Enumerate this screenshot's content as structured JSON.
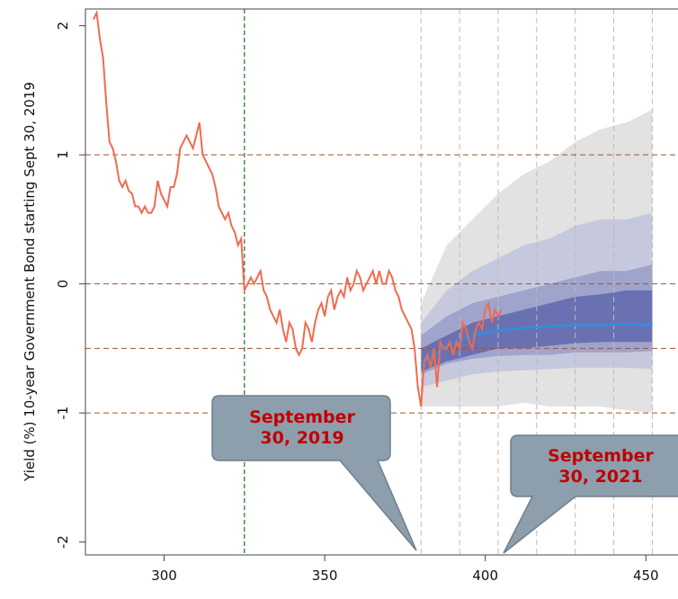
{
  "chart_data": {
    "type": "fan",
    "y_label": "Yield (%) 10-year Government Bond starting Sept 30, 2019",
    "xlim": [
      275.5,
      460
    ],
    "ylim": [
      -2.1,
      2.13
    ],
    "xticks": [
      300,
      350,
      400,
      450
    ],
    "yticks": [
      -2,
      -1,
      0,
      1,
      2
    ],
    "hlines": [
      1,
      0,
      -0.5,
      -1
    ],
    "hline_color": "#a0522d",
    "vlines": [
      380,
      392,
      404,
      416,
      428,
      440,
      452
    ],
    "vline_color": "#bbbbbb",
    "event_line": 325,
    "event_color": "#2e7d32",
    "series": [
      {
        "color": "#f26a4f",
        "x": [
          278,
          279,
          280,
          281,
          282,
          283,
          284,
          285,
          286,
          287,
          288,
          289,
          290,
          291,
          292,
          293,
          294,
          295,
          296,
          297,
          298,
          299,
          300,
          301,
          302,
          303,
          304,
          305,
          306,
          307,
          308,
          309,
          310,
          311,
          312,
          313,
          314,
          315,
          316,
          317,
          318,
          319,
          320,
          321,
          322,
          323,
          324,
          325,
          326,
          327,
          328,
          329,
          330,
          331,
          332,
          333,
          334,
          335,
          336,
          337,
          338,
          339,
          340,
          341,
          342,
          343,
          344,
          345,
          346,
          347,
          348,
          349,
          350,
          351,
          352,
          353,
          354,
          355,
          356,
          357,
          358,
          359,
          360,
          361,
          362,
          363,
          364,
          365,
          366,
          367,
          368,
          369,
          370,
          371,
          372,
          373,
          374,
          375,
          376,
          377,
          378,
          379,
          380,
          381,
          382,
          383,
          384,
          385,
          386,
          387,
          388,
          389,
          390,
          391,
          392,
          393,
          394,
          395,
          396,
          397,
          398,
          399,
          400,
          401,
          402,
          403,
          404,
          405
        ],
        "values": [
          2.05,
          2.1,
          1.9,
          1.75,
          1.4,
          1.1,
          1.05,
          0.95,
          0.8,
          0.75,
          0.8,
          0.72,
          0.7,
          0.6,
          0.6,
          0.55,
          0.6,
          0.55,
          0.55,
          0.6,
          0.8,
          0.7,
          0.65,
          0.6,
          0.75,
          0.75,
          0.85,
          1.05,
          1.1,
          1.15,
          1.1,
          1.05,
          1.15,
          1.25,
          1.0,
          0.95,
          0.9,
          0.85,
          0.75,
          0.6,
          0.55,
          0.5,
          0.55,
          0.45,
          0.4,
          0.3,
          0.35,
          -0.05,
          0.0,
          0.05,
          0.0,
          0.05,
          0.1,
          -0.05,
          -0.1,
          -0.2,
          -0.25,
          -0.3,
          -0.2,
          -0.35,
          -0.45,
          -0.3,
          -0.35,
          -0.5,
          -0.55,
          -0.5,
          -0.3,
          -0.35,
          -0.45,
          -0.3,
          -0.2,
          -0.15,
          -0.25,
          -0.1,
          -0.05,
          -0.2,
          -0.1,
          -0.05,
          -0.1,
          0.05,
          -0.05,
          0.0,
          0.1,
          0.05,
          -0.05,
          0.0,
          0.05,
          0.1,
          0.0,
          0.1,
          0.0,
          0.0,
          0.1,
          0.05,
          -0.05,
          -0.1,
          -0.2,
          -0.25,
          -0.3,
          -0.35,
          -0.5,
          -0.8,
          -0.95,
          -0.6,
          -0.55,
          -0.65,
          -0.5,
          -0.8,
          -0.45,
          -0.5,
          -0.5,
          -0.45,
          -0.55,
          -0.45,
          -0.5,
          -0.3,
          -0.35,
          -0.45,
          -0.5,
          -0.35,
          -0.3,
          -0.35,
          -0.2,
          -0.15,
          -0.3,
          -0.2,
          -0.25,
          -0.2
        ]
      }
    ],
    "forecast_x": [
      380,
      388,
      396,
      404,
      412,
      420,
      428,
      436,
      444,
      452
    ],
    "bands": [
      {
        "color": "#e2e2e2",
        "upper": [
          -0.15,
          0.3,
          0.5,
          0.7,
          0.85,
          0.95,
          1.1,
          1.2,
          1.25,
          1.35
        ],
        "lower": [
          -0.95,
          -0.95,
          -0.95,
          -0.95,
          -0.92,
          -0.95,
          -0.95,
          -0.95,
          -0.98,
          -1.0
        ]
      },
      {
        "color": "#c6c9dd",
        "upper": [
          -0.3,
          -0.05,
          0.1,
          0.2,
          0.3,
          0.35,
          0.45,
          0.5,
          0.5,
          0.55
        ],
        "lower": [
          -0.8,
          -0.75,
          -0.7,
          -0.68,
          -0.67,
          -0.66,
          -0.65,
          -0.65,
          -0.65,
          -0.66
        ]
      },
      {
        "color": "#9fa4cd",
        "upper": [
          -0.4,
          -0.25,
          -0.15,
          -0.1,
          -0.05,
          0.0,
          0.05,
          0.1,
          0.1,
          0.15
        ],
        "lower": [
          -0.7,
          -0.62,
          -0.58,
          -0.56,
          -0.55,
          -0.55,
          -0.53,
          -0.53,
          -0.53,
          -0.52
        ]
      },
      {
        "color": "#6a71b2",
        "upper": [
          -0.5,
          -0.4,
          -0.3,
          -0.25,
          -0.2,
          -0.15,
          -0.1,
          -0.08,
          -0.05,
          -0.05
        ],
        "lower": [
          -0.68,
          -0.6,
          -0.55,
          -0.5,
          -0.5,
          -0.48,
          -0.46,
          -0.45,
          -0.45,
          -0.45
        ]
      }
    ],
    "median": {
      "color": "#2f8fe0",
      "values": [
        -0.62,
        -0.48,
        -0.4,
        -0.36,
        -0.34,
        -0.33,
        -0.32,
        -0.32,
        -0.31,
        -0.32
      ]
    },
    "annotations": [
      "September 30, 2019",
      "September 30, 2021"
    ]
  }
}
